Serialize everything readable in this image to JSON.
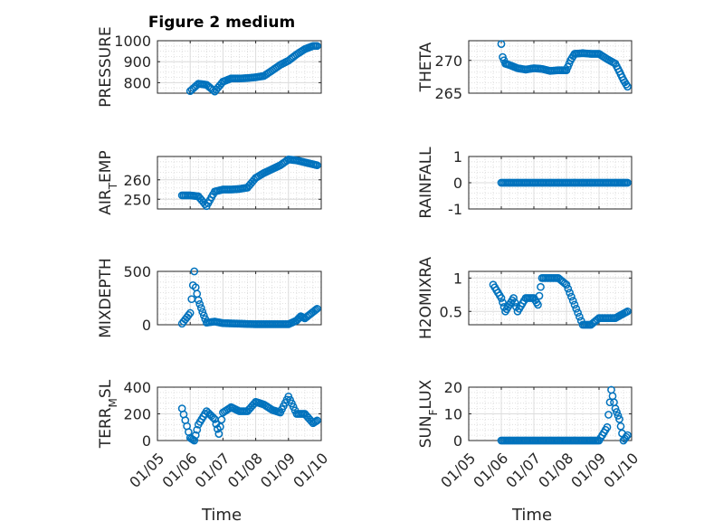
{
  "figure": {
    "title": "Figure 2 medium",
    "xlabel": "Time",
    "x_tick_labels": [
      "01/05",
      "01/06",
      "01/07",
      "01/08",
      "01/09",
      "01/10"
    ],
    "marker_color": "#0072BD",
    "grid_color": "#d9d9d9"
  },
  "chart_data": [
    {
      "type": "scatter",
      "ylabel": "PRESSURE",
      "xlim": [
        "01/05",
        "01/10"
      ],
      "ylim": [
        750,
        1000
      ],
      "y_ticks": [
        800,
        900,
        1000
      ],
      "x": [
        "01/06 00:00",
        "01/06 06:00",
        "01/06 12:00",
        "01/06 18:00",
        "01/07 00:00",
        "01/07 06:00",
        "01/07 12:00",
        "01/07 18:00",
        "01/08 00:00",
        "01/08 06:00",
        "01/08 12:00",
        "01/08 18:00",
        "01/09 00:00",
        "01/09 06:00",
        "01/09 12:00",
        "01/09 18:00",
        "01/09 21:00"
      ],
      "y": [
        760,
        795,
        790,
        758,
        805,
        820,
        820,
        822,
        826,
        832,
        858,
        885,
        905,
        935,
        960,
        975,
        975
      ]
    },
    {
      "type": "scatter",
      "ylabel": "THETA",
      "xlim": [
        "01/05",
        "01/10"
      ],
      "ylim": [
        265,
        273
      ],
      "y_ticks": [
        265,
        270
      ],
      "x": [
        "01/06 00:00",
        "01/06 01:00",
        "01/06 03:00",
        "01/06 06:00",
        "01/06 12:00",
        "01/06 18:00",
        "01/07 00:00",
        "01/07 06:00",
        "01/07 12:00",
        "01/07 18:00",
        "01/08 00:00",
        "01/08 03:00",
        "01/08 06:00",
        "01/08 12:00",
        "01/08 18:00",
        "01/09 00:00",
        "01/09 06:00",
        "01/09 12:00",
        "01/09 15:00",
        "01/09 18:00",
        "01/09 21:00"
      ],
      "y": [
        272.5,
        270.5,
        269.5,
        269.3,
        268.8,
        268.6,
        268.8,
        268.7,
        268.4,
        268.5,
        268.5,
        270.0,
        271.0,
        271.1,
        271.0,
        271.0,
        270.2,
        269.5,
        268.3,
        267.0,
        266.0
      ]
    },
    {
      "type": "scatter",
      "ylabel": "AIR_TEMP",
      "xlim": [
        "01/05",
        "01/10"
      ],
      "ylim": [
        245,
        272
      ],
      "y_ticks": [
        250,
        260
      ],
      "x": [
        "01/05 18:00",
        "01/06 00:00",
        "01/06 06:00",
        "01/06 12:00",
        "01/06 18:00",
        "01/07 00:00",
        "01/07 06:00",
        "01/07 12:00",
        "01/07 18:00",
        "01/08 00:00",
        "01/08 06:00",
        "01/08 12:00",
        "01/08 18:00",
        "01/09 00:00",
        "01/09 06:00",
        "01/09 12:00",
        "01/09 18:00",
        "01/09 21:00"
      ],
      "y": [
        252,
        252,
        251.5,
        246.5,
        254,
        255,
        255,
        255.3,
        256,
        261,
        263.5,
        265.5,
        267.5,
        270.5,
        270,
        269,
        268,
        267.5
      ]
    },
    {
      "type": "scatter",
      "ylabel": "RAINFALL",
      "xlim": [
        "01/05",
        "01/10"
      ],
      "ylim": [
        -1,
        1
      ],
      "y_ticks": [
        -1,
        0,
        1
      ],
      "x": [
        "01/06 00:00",
        "01/06 12:00",
        "01/07 00:00",
        "01/07 12:00",
        "01/08 00:00",
        "01/08 12:00",
        "01/09 00:00",
        "01/09 12:00",
        "01/09 21:00"
      ],
      "y": [
        0,
        0,
        0,
        0,
        0,
        0,
        0,
        0,
        0
      ]
    },
    {
      "type": "scatter",
      "ylabel": "MIXDEPTH",
      "xlim": [
        "01/05",
        "01/10"
      ],
      "ylim": [
        0,
        500
      ],
      "y_ticks": [
        0,
        500
      ],
      "x": [
        "01/05 18:00",
        "01/06 00:00",
        "01/06 03:00",
        "01/06 04:00",
        "01/06 06:00",
        "01/06 09:00",
        "01/06 12:00",
        "01/06 18:00",
        "01/07 00:00",
        "01/07 12:00",
        "01/08 00:00",
        "01/08 12:00",
        "01/09 00:00",
        "01/09 06:00",
        "01/09 09:00",
        "01/09 12:00",
        "01/09 18:00",
        "01/09 21:00"
      ],
      "y": [
        10,
        110,
        500,
        350,
        230,
        120,
        20,
        30,
        15,
        10,
        5,
        5,
        5,
        40,
        80,
        60,
        120,
        150
      ]
    },
    {
      "type": "scatter",
      "ylabel": "H2OMIXRA",
      "xlim": [
        "01/05",
        "01/10"
      ],
      "ylim": [
        0.3,
        1.1
      ],
      "y_ticks": [
        0.5,
        1
      ],
      "x": [
        "01/05 18:00",
        "01/06 00:00",
        "01/06 03:00",
        "01/06 06:00",
        "01/06 09:00",
        "01/06 12:00",
        "01/06 18:00",
        "01/07 00:00",
        "01/07 03:00",
        "01/07 06:00",
        "01/07 12:00",
        "01/07 18:00",
        "01/08 00:00",
        "01/08 06:00",
        "01/08 12:00",
        "01/08 18:00",
        "01/09 00:00",
        "01/09 12:00",
        "01/09 21:00"
      ],
      "y": [
        0.9,
        0.7,
        0.5,
        0.6,
        0.7,
        0.5,
        0.7,
        0.7,
        0.6,
        1.0,
        1.0,
        1.0,
        0.9,
        0.6,
        0.3,
        0.3,
        0.4,
        0.4,
        0.5
      ]
    },
    {
      "type": "scatter",
      "ylabel": "TERR_MSL",
      "xlim": [
        "01/05",
        "01/10"
      ],
      "ylim": [
        0,
        400
      ],
      "y_ticks": [
        0,
        200,
        400
      ],
      "x": [
        "01/05 18:00",
        "01/06 00:00",
        "01/06 03:00",
        "01/06 06:00",
        "01/06 12:00",
        "01/06 18:00",
        "01/06 21:00",
        "01/07 00:00",
        "01/07 06:00",
        "01/07 12:00",
        "01/07 18:00",
        "01/08 00:00",
        "01/08 06:00",
        "01/08 12:00",
        "01/08 18:00",
        "01/09 00:00",
        "01/09 06:00",
        "01/09 12:00",
        "01/09 18:00",
        "01/09 21:00"
      ],
      "y": [
        240,
        20,
        0,
        120,
        220,
        160,
        50,
        210,
        250,
        220,
        220,
        290,
        270,
        230,
        210,
        330,
        200,
        200,
        130,
        150
      ]
    },
    {
      "type": "scatter",
      "ylabel": "SUN_FLUX",
      "xlim": [
        "01/05",
        "01/10"
      ],
      "ylim": [
        0,
        20
      ],
      "y_ticks": [
        0,
        10,
        20
      ],
      "x": [
        "01/06 00:00",
        "01/06 12:00",
        "01/07 00:00",
        "01/07 12:00",
        "01/08 00:00",
        "01/08 12:00",
        "01/09 00:00",
        "01/09 06:00",
        "01/09 09:00",
        "01/09 12:00",
        "01/09 15:00",
        "01/09 18:00",
        "01/09 21:00"
      ],
      "y": [
        0,
        0,
        0,
        0,
        0,
        0,
        0,
        5,
        19,
        12,
        8,
        0,
        2
      ]
    }
  ]
}
